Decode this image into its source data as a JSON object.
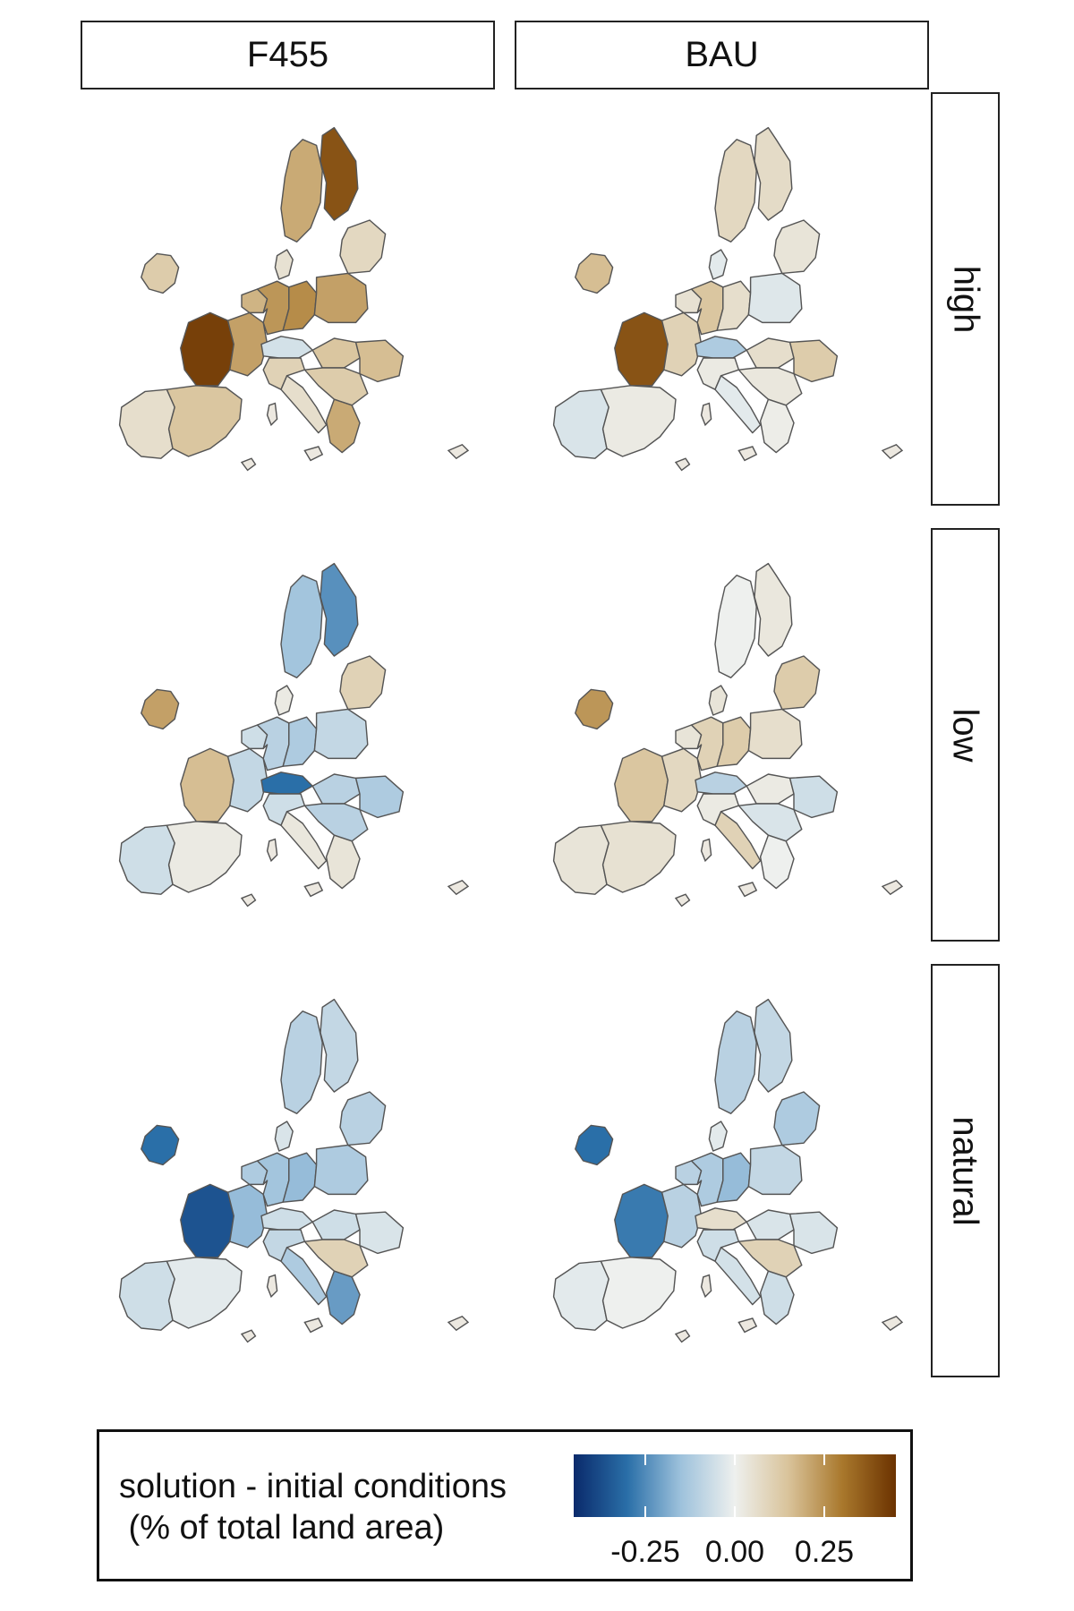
{
  "facets": {
    "columns": [
      "F455",
      "BAU"
    ],
    "rows": [
      "high",
      "low",
      "natural"
    ]
  },
  "legend": {
    "title": "solution - initial conditions\n (% of total land area)",
    "ticks": [
      "-0.25",
      "0.00",
      "0.25"
    ],
    "tick_values": [
      -0.25,
      0,
      0.25
    ],
    "range": [
      -0.45,
      0.45
    ],
    "colors": [
      "#0a2a6b",
      "#2a6fa8",
      "#9ec2dc",
      "#eef0ee",
      "#d9c39a",
      "#a9782c",
      "#6b3200"
    ]
  },
  "map_style": {
    "border_color": "#555555",
    "land_neutral": "#ece8e0"
  },
  "panels": [
    {
      "column": "F455",
      "row": "high",
      "regions": {
        "ireland": 0.12,
        "iberia_w": 0.06,
        "iberia_e": 0.14,
        "france_w": 0.42,
        "france_e": 0.22,
        "benelux": 0.18,
        "germany_w": 0.24,
        "germany_e": 0.26,
        "poland": 0.22,
        "baltic": 0.08,
        "sweden": 0.2,
        "finland": 0.38,
        "italy_n": 0.1,
        "italy_s": 0.06,
        "balkans": 0.12,
        "romania": 0.16,
        "greece": 0.2,
        "alps": -0.05,
        "denmark": 0.05,
        "hungary": 0.14
      }
    },
    {
      "column": "BAU",
      "row": "high",
      "regions": {
        "ireland": 0.16,
        "iberia_w": -0.04,
        "iberia_e": 0.02,
        "france_w": 0.38,
        "france_e": 0.1,
        "benelux": 0.05,
        "germany_w": 0.14,
        "germany_e": 0.06,
        "poland": -0.03,
        "baltic": 0.04,
        "sweden": 0.08,
        "finland": 0.07,
        "italy_n": 0.02,
        "italy_s": -0.02,
        "balkans": 0.03,
        "romania": 0.12,
        "greece": 0.01,
        "alps": -0.12,
        "denmark": -0.02,
        "hungary": 0.06
      }
    },
    {
      "column": "F455",
      "row": "low",
      "regions": {
        "ireland": 0.22,
        "iberia_w": -0.06,
        "iberia_e": 0.02,
        "france_w": 0.16,
        "france_e": -0.08,
        "benelux": -0.06,
        "germany_w": -0.1,
        "germany_e": -0.12,
        "poland": -0.08,
        "baltic": 0.1,
        "sweden": -0.14,
        "finland": -0.24,
        "italy_n": -0.06,
        "italy_s": 0.03,
        "balkans": -0.1,
        "romania": -0.12,
        "greece": 0.04,
        "alps": -0.3,
        "denmark": 0.02,
        "hungary": -0.1
      }
    },
    {
      "column": "BAU",
      "row": "low",
      "regions": {
        "ireland": 0.24,
        "iberia_w": 0.04,
        "iberia_e": 0.05,
        "france_w": 0.14,
        "france_e": 0.08,
        "benelux": 0.04,
        "germany_w": 0.1,
        "germany_e": 0.12,
        "poland": 0.06,
        "baltic": 0.12,
        "sweden": 0.0,
        "finland": 0.03,
        "italy_n": 0.02,
        "italy_s": 0.1,
        "balkans": -0.04,
        "romania": -0.06,
        "greece": 0.0,
        "alps": -0.1,
        "denmark": 0.04,
        "hungary": 0.02
      }
    },
    {
      "column": "F455",
      "row": "natural",
      "regions": {
        "ireland": -0.3,
        "iberia_w": -0.06,
        "iberia_e": -0.02,
        "france_w": -0.36,
        "france_e": -0.16,
        "benelux": -0.12,
        "germany_w": -0.14,
        "germany_e": -0.16,
        "poland": -0.12,
        "baltic": -0.1,
        "sweden": -0.1,
        "finland": -0.08,
        "italy_n": -0.08,
        "italy_s": -0.12,
        "balkans": 0.1,
        "romania": -0.04,
        "greece": -0.22,
        "alps": -0.06,
        "denmark": -0.04,
        "hungary": -0.06
      }
    },
    {
      "column": "BAU",
      "row": "natural",
      "regions": {
        "ireland": -0.3,
        "iberia_w": -0.02,
        "iberia_e": 0.0,
        "france_w": -0.28,
        "france_e": -0.1,
        "benelux": -0.1,
        "germany_w": -0.12,
        "germany_e": -0.16,
        "poland": -0.08,
        "baltic": -0.12,
        "sweden": -0.1,
        "finland": -0.08,
        "italy_n": -0.06,
        "italy_s": -0.05,
        "balkans": 0.1,
        "romania": -0.04,
        "greece": -0.06,
        "alps": 0.06,
        "denmark": -0.02,
        "hungary": -0.04
      }
    }
  ]
}
